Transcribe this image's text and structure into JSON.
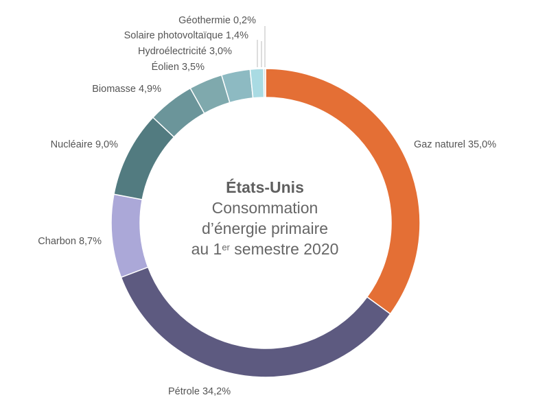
{
  "chart_data": {
    "type": "pie",
    "style": "donut",
    "title": "États-Unis",
    "subtitle_lines": [
      "Consommation",
      "d’énergie primaire",
      "au 1",
      "er",
      " semestre 2020"
    ],
    "slices": [
      {
        "label": "Gaz naturel 35,0%",
        "value": 35.0,
        "color": "#e46f35"
      },
      {
        "label": "Pétrole 34,2%",
        "value": 34.2,
        "color": "#5d5a80"
      },
      {
        "label": "Charbon 8,7%",
        "value": 8.7,
        "color": "#aba8d8"
      },
      {
        "label": "Nucléaire 9,0%",
        "value": 9.0,
        "color": "#527b80"
      },
      {
        "label": "Biomasse 4,9%",
        "value": 4.9,
        "color": "#6b959a"
      },
      {
        "label": "Éolien 3,5%",
        "value": 3.5,
        "color": "#7fa9ad"
      },
      {
        "label": "Hydroélectricité 3,0%",
        "value": 3.0,
        "color": "#8dbac2"
      },
      {
        "label": "Solaire photovoltaïque 1,4%",
        "value": 1.4,
        "color": "#a9dbe3"
      },
      {
        "label": "Géothermie 0,2%",
        "value": 0.2,
        "color": "#d9d9d9"
      }
    ]
  }
}
